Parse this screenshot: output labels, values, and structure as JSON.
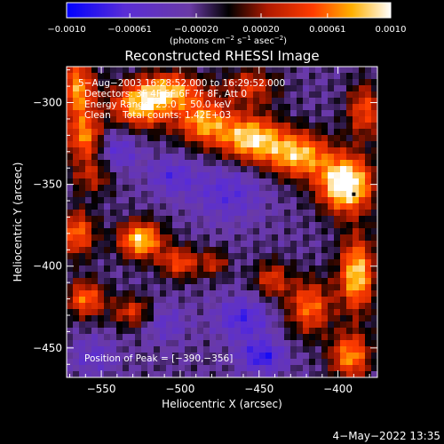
{
  "chart_data": {
    "type": "heatmap",
    "title": "Reconstructed RHESSI Image",
    "xlabel": "Heliocentric X (arcsec)",
    "ylabel": "Heliocentric Y (arcsec)",
    "xlim": [
      -572,
      -375
    ],
    "ylim": [
      -468,
      -278
    ],
    "x_ticks": [
      -550,
      -500,
      -450,
      -400
    ],
    "y_ticks": [
      -300,
      -350,
      -400,
      -450
    ],
    "x_tick_labels": [
      "−550",
      "−500",
      "−450",
      "−400"
    ],
    "y_tick_labels": [
      "−300",
      "−350",
      "−400",
      "−450"
    ],
    "colorbar": {
      "range": [
        -0.001,
        0.001
      ],
      "tick_values": [
        -0.001,
        -0.00061,
        -0.0002,
        0.0002,
        0.00061,
        0.001
      ],
      "tick_labels": [
        "−0.0010",
        "−0.00061",
        "−0.00020",
        "0.00020",
        "0.00061",
        "0.0010"
      ],
      "units_prefix": "(photons cm",
      "units_exp1": "−2",
      "units_mid": " s",
      "units_exp2": "−1",
      "units_mid2": " asec",
      "units_exp3": "−2",
      "units_suffix": ")"
    },
    "annotations": [
      "5−Aug−2003 16:28:52.000 to 16:29:52.000",
      "Detectors: 3F 4F 5F 6F 7F 8F, Att 0",
      "Energy Range: 25.0 − 50.0 keV",
      "Clean    Total counts: 1.42E+03"
    ],
    "peak_label": "Position of Peak = [−390,−356]",
    "peak": [
      -390,
      -356
    ],
    "blobs": [
      {
        "x": -525,
        "y": -302,
        "amp": 0.001,
        "sx": 14,
        "sy": 10
      },
      {
        "x": -505,
        "y": -292,
        "amp": 0.0008,
        "sx": 14,
        "sy": 8
      },
      {
        "x": -485,
        "y": -312,
        "amp": 0.0009,
        "sx": 12,
        "sy": 10
      },
      {
        "x": -455,
        "y": -322,
        "amp": 0.0011,
        "sx": 14,
        "sy": 10
      },
      {
        "x": -425,
        "y": -332,
        "amp": 0.001,
        "sx": 14,
        "sy": 10
      },
      {
        "x": -395,
        "y": -350,
        "amp": 0.0014,
        "sx": 12,
        "sy": 12
      },
      {
        "x": -383,
        "y": -305,
        "amp": 0.0007,
        "sx": 8,
        "sy": 12
      },
      {
        "x": -455,
        "y": -290,
        "amp": 0.0006,
        "sx": 12,
        "sy": 8
      },
      {
        "x": -565,
        "y": -292,
        "amp": 0.0009,
        "sx": 8,
        "sy": 14
      },
      {
        "x": -560,
        "y": -322,
        "amp": 0.0008,
        "sx": 8,
        "sy": 10
      },
      {
        "x": -555,
        "y": -345,
        "amp": 0.0005,
        "sx": 10,
        "sy": 8
      },
      {
        "x": -565,
        "y": -380,
        "amp": 0.0008,
        "sx": 8,
        "sy": 10
      },
      {
        "x": -525,
        "y": -384,
        "amp": 0.0011,
        "sx": 10,
        "sy": 8
      },
      {
        "x": -500,
        "y": -398,
        "amp": 0.0007,
        "sx": 9,
        "sy": 7
      },
      {
        "x": -560,
        "y": -420,
        "amp": 0.0008,
        "sx": 9,
        "sy": 8
      },
      {
        "x": -530,
        "y": -428,
        "amp": 0.0006,
        "sx": 9,
        "sy": 7
      },
      {
        "x": -478,
        "y": -398,
        "amp": 0.0005,
        "sx": 6,
        "sy": 6
      },
      {
        "x": -442,
        "y": -408,
        "amp": 0.0006,
        "sx": 8,
        "sy": 8
      },
      {
        "x": -418,
        "y": -425,
        "amp": 0.0008,
        "sx": 10,
        "sy": 12
      },
      {
        "x": -388,
        "y": -405,
        "amp": 0.0011,
        "sx": 8,
        "sy": 16
      },
      {
        "x": -392,
        "y": -455,
        "amp": 0.0009,
        "sx": 9,
        "sy": 10
      },
      {
        "x": -470,
        "y": -355,
        "amp": -0.0004,
        "sx": 16,
        "sy": 12
      },
      {
        "x": -505,
        "y": -345,
        "amp": -0.0004,
        "sx": 10,
        "sy": 8
      },
      {
        "x": -540,
        "y": -330,
        "amp": -0.0004,
        "sx": 10,
        "sy": 10
      },
      {
        "x": -460,
        "y": -432,
        "amp": -0.0005,
        "sx": 12,
        "sy": 9
      },
      {
        "x": -448,
        "y": -455,
        "amp": -0.0006,
        "sx": 10,
        "sy": 7
      },
      {
        "x": -510,
        "y": -435,
        "amp": -0.0003,
        "sx": 10,
        "sy": 8
      },
      {
        "x": -555,
        "y": -455,
        "amp": -0.0003,
        "sx": 10,
        "sy": 8
      }
    ],
    "background_amp": -0.0002
  },
  "footer": {
    "timestamp": "4−May−2022 13:35"
  }
}
